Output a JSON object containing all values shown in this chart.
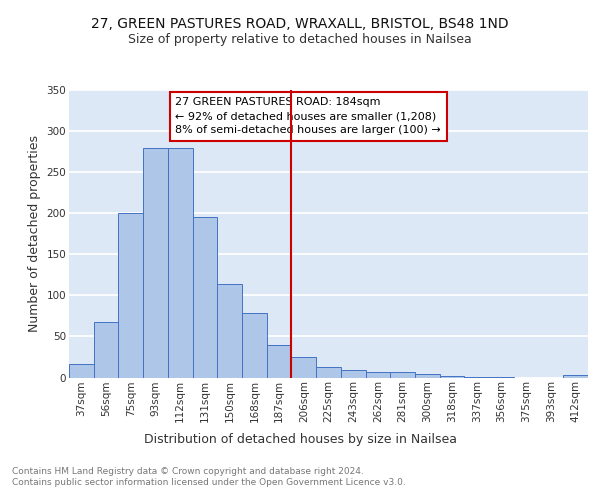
{
  "title": "27, GREEN PASTURES ROAD, WRAXALL, BRISTOL, BS48 1ND",
  "subtitle": "Size of property relative to detached houses in Nailsea",
  "xlabel": "Distribution of detached houses by size in Nailsea",
  "ylabel": "Number of detached properties",
  "categories": [
    "37sqm",
    "56sqm",
    "75sqm",
    "93sqm",
    "112sqm",
    "131sqm",
    "150sqm",
    "168sqm",
    "187sqm",
    "206sqm",
    "225sqm",
    "243sqm",
    "262sqm",
    "281sqm",
    "300sqm",
    "318sqm",
    "337sqm",
    "356sqm",
    "375sqm",
    "393sqm",
    "412sqm"
  ],
  "values": [
    17,
    68,
    200,
    280,
    280,
    196,
    114,
    79,
    40,
    25,
    13,
    9,
    7,
    7,
    4,
    2,
    1,
    1,
    0,
    0,
    3
  ],
  "bar_color": "#aec6e8",
  "bar_edge_color": "#4472c4",
  "bg_color": "#dce8f5",
  "grid_color": "#ffffff",
  "vline_x": 8.5,
  "vline_color": "#cc0000",
  "annotation_line1": "27 GREEN PASTURES ROAD: 184sqm",
  "annotation_line2": "← 92% of detached houses are smaller (1,208)",
  "annotation_line3": "8% of semi-detached houses are larger (100) →",
  "annotation_box_color": "#cc0000",
  "annotation_text_color": "#000000",
  "footnote": "Contains HM Land Registry data © Crown copyright and database right 2024.\nContains public sector information licensed under the Open Government Licence v3.0.",
  "title_fontsize": 10,
  "subtitle_fontsize": 9,
  "xlabel_fontsize": 9,
  "ylabel_fontsize": 9,
  "tick_fontsize": 7.5,
  "annot_fontsize": 8,
  "footnote_fontsize": 6.5,
  "ylim": [
    0,
    350
  ],
  "yticks": [
    0,
    50,
    100,
    150,
    200,
    250,
    300,
    350
  ]
}
